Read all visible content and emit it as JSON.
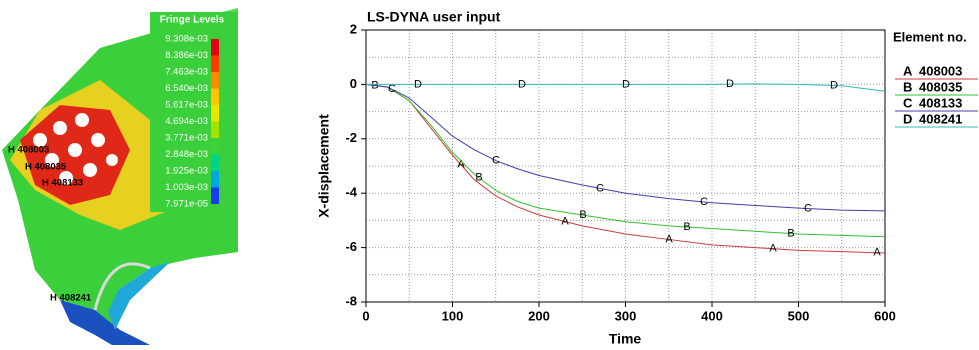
{
  "contour_plot": {
    "title": "Fringe Levels",
    "levels": [
      "9.308e-03",
      "8.386e-03",
      "7.463e-03",
      "6.540e-03",
      "5.617e-03",
      "4.694e-03",
      "3.771e-03",
      "2.848e-03",
      "1.925e-03",
      "1.003e-03",
      "7.971e-05"
    ],
    "colors": [
      "#e8001a",
      "#ff3c00",
      "#ff8a00",
      "#ffc400",
      "#e6e600",
      "#a6e400",
      "#3ad43a",
      "#00d48a",
      "#00a8e0",
      "#1a3cf0"
    ],
    "node_labels": [
      "H 408003",
      "H 408035",
      "H 408133",
      "H 408241"
    ]
  },
  "chart_data": {
    "type": "line",
    "title": "LS-DYNA user input",
    "x_label": "Time",
    "y_label": "X-displacement",
    "legend_title": "Element no.",
    "x": [
      0,
      25,
      50,
      75,
      100,
      125,
      150,
      175,
      200,
      250,
      300,
      350,
      400,
      450,
      500,
      550,
      600
    ],
    "series": [
      {
        "name": "408003",
        "marker": "A",
        "color": "#c83c3c",
        "values": [
          0,
          -0.1,
          -0.6,
          -1.6,
          -2.6,
          -3.5,
          -4.1,
          -4.5,
          -4.8,
          -5.2,
          -5.5,
          -5.7,
          -5.9,
          -6.0,
          -6.1,
          -6.15,
          -6.2
        ]
      },
      {
        "name": "408035",
        "marker": "B",
        "color": "#30c030",
        "values": [
          0,
          -0.1,
          -0.6,
          -1.5,
          -2.5,
          -3.3,
          -3.9,
          -4.3,
          -4.55,
          -4.8,
          -5.05,
          -5.2,
          -5.3,
          -5.4,
          -5.5,
          -5.55,
          -5.6
        ]
      },
      {
        "name": "408133",
        "marker": "C",
        "color": "#4040a8",
        "values": [
          0,
          -0.1,
          -0.5,
          -1.2,
          -1.9,
          -2.4,
          -2.8,
          -3.1,
          -3.35,
          -3.7,
          -4.0,
          -4.2,
          -4.35,
          -4.45,
          -4.55,
          -4.62,
          -4.65
        ]
      },
      {
        "name": "408241",
        "marker": "D",
        "color": "#30b8b8",
        "values": [
          0,
          0,
          0,
          0,
          0,
          0,
          0,
          0,
          0,
          0,
          0,
          0,
          0,
          0.02,
          0,
          -0.05,
          -0.25
        ]
      }
    ],
    "xlim": [
      0,
      600
    ],
    "xticks": [
      0,
      100,
      200,
      300,
      400,
      500,
      600
    ],
    "ylim": [
      -8,
      2
    ],
    "yticks": [
      -8,
      -6,
      -4,
      -2,
      0,
      2
    ],
    "minor_xticks": [
      50,
      150,
      250,
      350,
      450,
      550
    ],
    "minor_yticks": [
      -7,
      -5,
      -3,
      -1,
      1
    ],
    "grid": true
  }
}
